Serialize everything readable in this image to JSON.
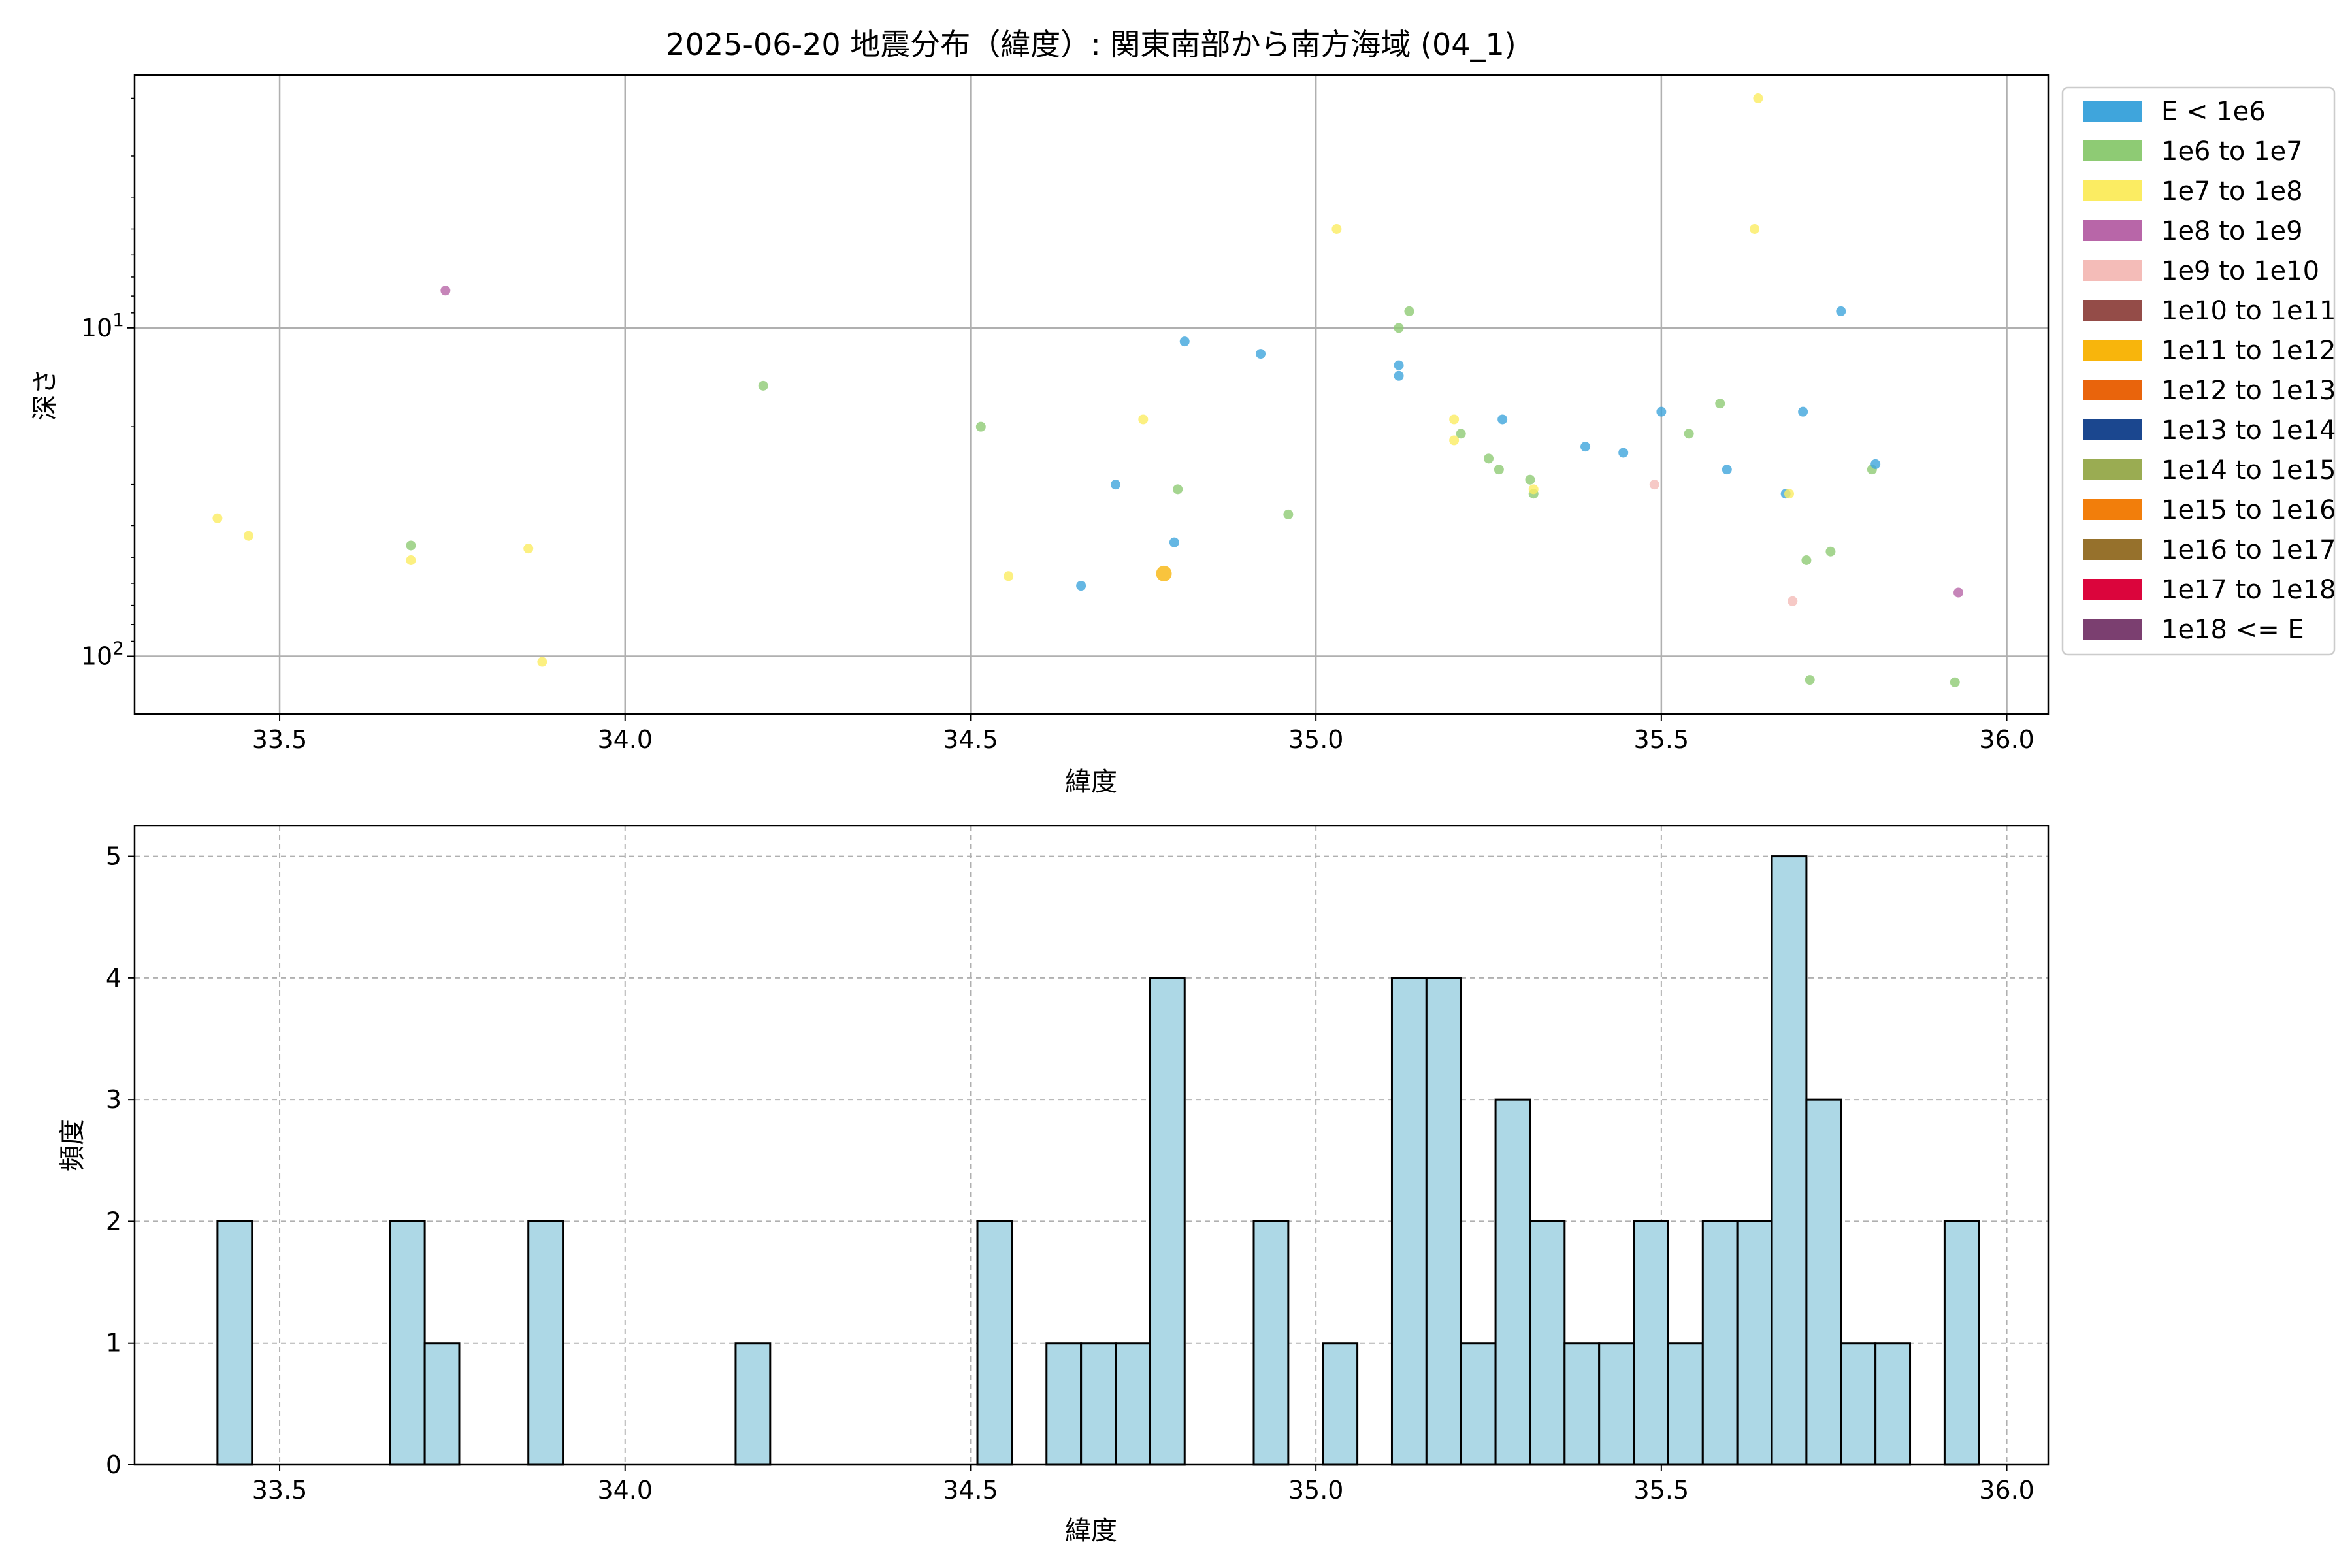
{
  "chart_data": [
    {
      "type": "scatter",
      "title": "2025-06-20 地震分布（緯度）: 関東南部から南方海域 (04_1)",
      "xlabel": "緯度",
      "ylabel": "深さ",
      "xlim": [
        33.29,
        36.06
      ],
      "ylim": [
        150,
        1.7
      ],
      "yscale": "log",
      "y_inverted": true,
      "xticks": [
        33.5,
        34.0,
        34.5,
        35.0,
        35.5,
        36.0
      ],
      "xtick_labels": [
        "33.5",
        "34.0",
        "34.5",
        "35.0",
        "35.5",
        "36.0"
      ],
      "yticks": [
        10,
        100
      ],
      "grid": true,
      "legend_position": "outside-right",
      "legend": [
        {
          "label": "E < 1e6",
          "color": "#3fa5dc"
        },
        {
          "label": "1e6 to 1e7",
          "color": "#8ecb74"
        },
        {
          "label": "1e7 to 1e8",
          "color": "#fbec62"
        },
        {
          "label": "1e8 to 1e9",
          "color": "#b866a8"
        },
        {
          "label": "1e9 to 1e10",
          "color": "#f4bcb8"
        },
        {
          "label": "1e10 to 1e11",
          "color": "#944c48"
        },
        {
          "label": "1e11 to 1e12",
          "color": "#f8b50c"
        },
        {
          "label": "1e12 to 1e13",
          "color": "#e9640c"
        },
        {
          "label": "1e13 to 1e14",
          "color": "#1b478f"
        },
        {
          "label": "1e14 to 1e15",
          "color": "#9aac52"
        },
        {
          "label": "1e15 to 1e16",
          "color": "#f27e0b"
        },
        {
          "label": "1e16 to 1e17",
          "color": "#96712c"
        },
        {
          "label": "1e17 to 1e18",
          "color": "#db053c"
        },
        {
          "label": "1e18 <= E",
          "color": "#7b3f70"
        }
      ],
      "points": [
        {
          "x": 33.41,
          "y": 38,
          "c": 2
        },
        {
          "x": 33.455,
          "y": 43,
          "c": 2
        },
        {
          "x": 33.69,
          "y": 46,
          "c": 1
        },
        {
          "x": 33.69,
          "y": 51,
          "c": 2
        },
        {
          "x": 33.74,
          "y": 7.7,
          "c": 3
        },
        {
          "x": 33.86,
          "y": 47,
          "c": 2
        },
        {
          "x": 33.88,
          "y": 104,
          "c": 2
        },
        {
          "x": 34.2,
          "y": 15,
          "c": 1
        },
        {
          "x": 34.515,
          "y": 20,
          "c": 1
        },
        {
          "x": 34.555,
          "y": 57,
          "c": 2
        },
        {
          "x": 34.66,
          "y": 61,
          "c": 0
        },
        {
          "x": 34.71,
          "y": 30,
          "c": 0
        },
        {
          "x": 34.75,
          "y": 19,
          "c": 2
        },
        {
          "x": 34.78,
          "y": 56,
          "c": 6,
          "big": true
        },
        {
          "x": 34.795,
          "y": 45,
          "c": 0
        },
        {
          "x": 34.8,
          "y": 31,
          "c": 1
        },
        {
          "x": 34.81,
          "y": 11,
          "c": 0
        },
        {
          "x": 34.92,
          "y": 12,
          "c": 0
        },
        {
          "x": 34.96,
          "y": 37,
          "c": 1
        },
        {
          "x": 35.03,
          "y": 5.0,
          "c": 2
        },
        {
          "x": 35.12,
          "y": 10,
          "c": 1
        },
        {
          "x": 35.12,
          "y": 13,
          "c": 0
        },
        {
          "x": 35.12,
          "y": 14,
          "c": 0
        },
        {
          "x": 35.135,
          "y": 8.9,
          "c": 1
        },
        {
          "x": 35.2,
          "y": 19,
          "c": 2
        },
        {
          "x": 35.2,
          "y": 22,
          "c": 2
        },
        {
          "x": 35.21,
          "y": 21,
          "c": 1
        },
        {
          "x": 35.25,
          "y": 25,
          "c": 1
        },
        {
          "x": 35.265,
          "y": 27,
          "c": 1
        },
        {
          "x": 35.27,
          "y": 19,
          "c": 0
        },
        {
          "x": 35.31,
          "y": 29,
          "c": 1
        },
        {
          "x": 35.315,
          "y": 32,
          "c": 1
        },
        {
          "x": 35.315,
          "y": 31,
          "c": 2
        },
        {
          "x": 35.39,
          "y": 23,
          "c": 0
        },
        {
          "x": 35.445,
          "y": 24,
          "c": 0
        },
        {
          "x": 35.49,
          "y": 30,
          "c": 4
        },
        {
          "x": 35.5,
          "y": 18,
          "c": 0
        },
        {
          "x": 35.54,
          "y": 21,
          "c": 1
        },
        {
          "x": 35.585,
          "y": 17,
          "c": 1
        },
        {
          "x": 35.595,
          "y": 27,
          "c": 0
        },
        {
          "x": 35.635,
          "y": 5.0,
          "c": 2
        },
        {
          "x": 35.64,
          "y": 2.0,
          "c": 2
        },
        {
          "x": 35.68,
          "y": 32,
          "c": 0
        },
        {
          "x": 35.685,
          "y": 32,
          "c": 2
        },
        {
          "x": 35.69,
          "y": 68,
          "c": 4
        },
        {
          "x": 35.705,
          "y": 18,
          "c": 0
        },
        {
          "x": 35.71,
          "y": 51,
          "c": 1
        },
        {
          "x": 35.715,
          "y": 118,
          "c": 1
        },
        {
          "x": 35.745,
          "y": 48,
          "c": 1
        },
        {
          "x": 35.76,
          "y": 8.9,
          "c": 0
        },
        {
          "x": 35.805,
          "y": 27,
          "c": 1
        },
        {
          "x": 35.81,
          "y": 26,
          "c": 0
        },
        {
          "x": 35.925,
          "y": 120,
          "c": 1
        },
        {
          "x": 35.93,
          "y": 64,
          "c": 3
        }
      ]
    },
    {
      "type": "bar",
      "subtype": "histogram",
      "xlabel": "緯度",
      "ylabel": "頻度",
      "xlim": [
        33.29,
        36.06
      ],
      "ylim": [
        0,
        5.25
      ],
      "xticks": [
        33.5,
        34.0,
        34.5,
        35.0,
        35.5,
        36.0
      ],
      "xtick_labels": [
        "33.5",
        "34.0",
        "34.5",
        "35.0",
        "35.5",
        "36.0"
      ],
      "yticks": [
        0,
        1,
        2,
        3,
        4,
        5
      ],
      "grid": true,
      "bar_color": "#add8e6",
      "bin_width": 0.05,
      "bins": [
        {
          "left": 33.41,
          "count": 2
        },
        {
          "left": 33.66,
          "count": 2
        },
        {
          "left": 33.71,
          "count": 1
        },
        {
          "left": 33.86,
          "count": 2
        },
        {
          "left": 34.16,
          "count": 1
        },
        {
          "left": 34.51,
          "count": 2
        },
        {
          "left": 34.61,
          "count": 1
        },
        {
          "left": 34.66,
          "count": 1
        },
        {
          "left": 34.71,
          "count": 1
        },
        {
          "left": 34.76,
          "count": 4
        },
        {
          "left": 34.91,
          "count": 2
        },
        {
          "left": 35.01,
          "count": 1
        },
        {
          "left": 35.11,
          "count": 4
        },
        {
          "left": 35.16,
          "count": 4
        },
        {
          "left": 35.21,
          "count": 1
        },
        {
          "left": 35.26,
          "count": 3
        },
        {
          "left": 35.31,
          "count": 2
        },
        {
          "left": 35.36,
          "count": 1
        },
        {
          "left": 35.41,
          "count": 1
        },
        {
          "left": 35.46,
          "count": 2
        },
        {
          "left": 35.51,
          "count": 1
        },
        {
          "left": 35.56,
          "count": 2
        },
        {
          "left": 35.61,
          "count": 2
        },
        {
          "left": 35.66,
          "count": 5
        },
        {
          "left": 35.71,
          "count": 3
        },
        {
          "left": 35.76,
          "count": 1
        },
        {
          "left": 35.81,
          "count": 1
        },
        {
          "left": 35.91,
          "count": 2
        }
      ]
    }
  ]
}
